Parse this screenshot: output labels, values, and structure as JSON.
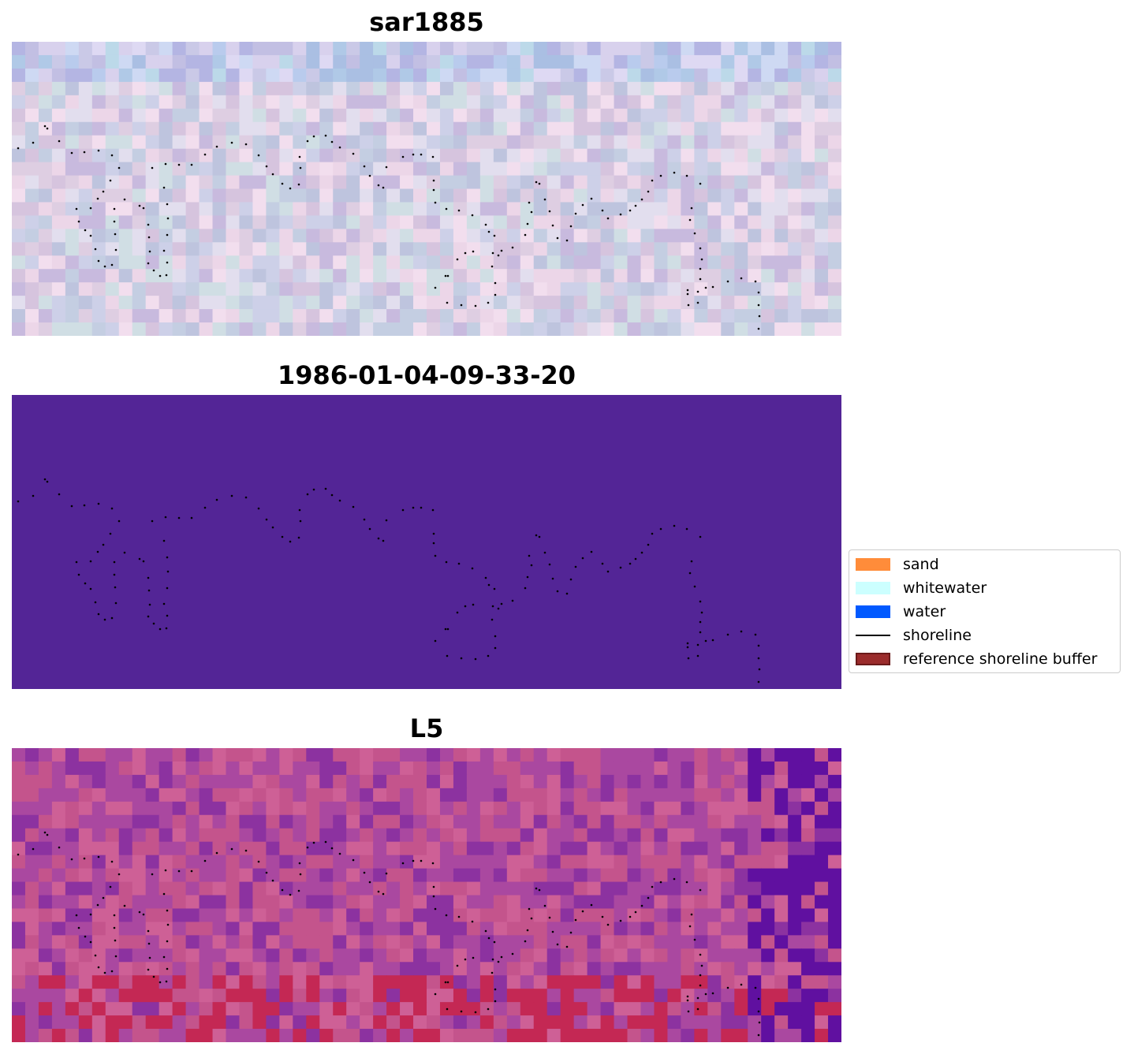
{
  "figure": {
    "panels": [
      {
        "id": "sar",
        "title": "sar1885",
        "style": "rgb-composite"
      },
      {
        "id": "classified",
        "title": "1986-01-04-09-33-20",
        "style": "classification",
        "fill_color": "#532596"
      },
      {
        "id": "l5",
        "title": "L5",
        "style": "false-color"
      }
    ],
    "legend": {
      "entries": [
        {
          "label": "sand",
          "kind": "patch",
          "color": "#ff8c3a"
        },
        {
          "label": "whitewater",
          "kind": "patch",
          "color": "#ccffff"
        },
        {
          "label": "water",
          "kind": "patch",
          "color": "#0059ff"
        },
        {
          "label": "shoreline",
          "kind": "line",
          "color": "#000000"
        },
        {
          "label": "reference shoreline buffer",
          "kind": "patch",
          "color": "#9b2c2c",
          "edge_color": "#6b1a1a"
        }
      ],
      "placement": "center-right"
    }
  }
}
